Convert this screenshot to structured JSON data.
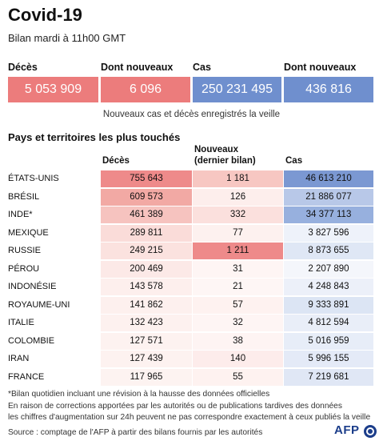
{
  "header": {
    "title": "Covid-19",
    "subtitle": "Bilan mardi à 11h00 GMT"
  },
  "summary": [
    {
      "label": "Décès",
      "value": "5 053 909",
      "color": "#ec7c7c"
    },
    {
      "label": "Dont nouveaux",
      "value": "6 096",
      "color": "#ec7c7c"
    },
    {
      "label": "Cas",
      "value": "250 231 495",
      "color": "#6f8fce"
    },
    {
      "label": "Dont nouveaux",
      "value": "436 816",
      "color": "#6f8fce"
    }
  ],
  "caption": "Nouveaux cas et décès enregistrés la veille",
  "section_title": "Pays et territoires les plus touchés",
  "columns": {
    "deaths": "Décès",
    "new_line1": "Nouveaux",
    "new_line2": "(dernier bilan)",
    "cases": "Cas"
  },
  "rows": [
    {
      "country": "ÉTATS-UNIS",
      "deaths": "755 643",
      "new": "1 181",
      "cases": "46 613 210",
      "deaths_color": "#ee8a8a",
      "new_color": "#f7c7c2",
      "cases_color": "#7b98d2"
    },
    {
      "country": "BRÉSIL",
      "deaths": "609 573",
      "new": "126",
      "cases": "21 886 077",
      "deaths_color": "#f2a9a4",
      "new_color": "#fdeeec",
      "cases_color": "#b8c8e8"
    },
    {
      "country": "INDE*",
      "deaths": "461 389",
      "new": "332",
      "cases": "34 377 113",
      "deaths_color": "#f6c3bf",
      "new_color": "#fbe0dd",
      "cases_color": "#97b0de"
    },
    {
      "country": "MEXIQUE",
      "deaths": "289 811",
      "new": "77",
      "cases": "3 827 596",
      "deaths_color": "#fadcd9",
      "new_color": "#fdf1ef",
      "cases_color": "#eef2fa"
    },
    {
      "country": "RUSSIE",
      "deaths": "249 215",
      "new": "1 211",
      "cases": "8 873 655",
      "deaths_color": "#fbe2df",
      "new_color": "#ee8a8a",
      "cases_color": "#dfe7f5"
    },
    {
      "country": "PÉROU",
      "deaths": "200 469",
      "new": "31",
      "cases": "2 207 890",
      "deaths_color": "#fce9e7",
      "new_color": "#fef5f4",
      "cases_color": "#f4f6fb"
    },
    {
      "country": "INDONÉSIE",
      "deaths": "143 578",
      "new": "21",
      "cases": "4 248 843",
      "deaths_color": "#fdefed",
      "new_color": "#fef6f5",
      "cases_color": "#ecf0f9"
    },
    {
      "country": "ROYAUME-UNI",
      "deaths": "141 862",
      "new": "57",
      "cases": "9 333 891",
      "deaths_color": "#fdf0ee",
      "new_color": "#fef2f0",
      "cases_color": "#dce5f4"
    },
    {
      "country": "ITALIE",
      "deaths": "132 423",
      "new": "32",
      "cases": "4 812 594",
      "deaths_color": "#fdf1ef",
      "new_color": "#fef5f4",
      "cases_color": "#e9eef8"
    },
    {
      "country": "COLOMBIE",
      "deaths": "127 571",
      "new": "38",
      "cases": "5 016 959",
      "deaths_color": "#fdf2f0",
      "new_color": "#fef4f3",
      "cases_color": "#e7edf8"
    },
    {
      "country": "IRAN",
      "deaths": "127 439",
      "new": "140",
      "cases": "5 996 155",
      "deaths_color": "#fdf2f0",
      "new_color": "#fdeceb",
      "cases_color": "#e4eaf7"
    },
    {
      "country": "FRANCE",
      "deaths": "117 965",
      "new": "55",
      "cases": "7 219 681",
      "deaths_color": "#fdf3f1",
      "new_color": "#fef2f0",
      "cases_color": "#e0e7f5"
    }
  ],
  "footnotes": {
    "note1": "*Bilan quotidien incluant une révision à la hausse des données officielles",
    "note2": "En raison de corrections apportées par les autorités ou de publications tardives des données",
    "note3": "les chiffres d'augmentation sur 24h peuvent ne pas correspondre exactement à ceux publiés la veille",
    "source": "Source : comptage de l'AFP à partir des bilans fournis par les autorités"
  },
  "logo": {
    "text": "AFP",
    "icon": "afp-logo-icon"
  }
}
